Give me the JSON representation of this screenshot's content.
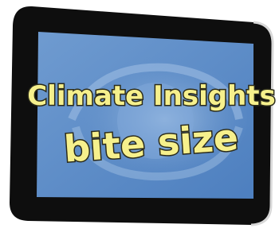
{
  "title": "Climate Insights",
  "subtitle": "bite size"
}
